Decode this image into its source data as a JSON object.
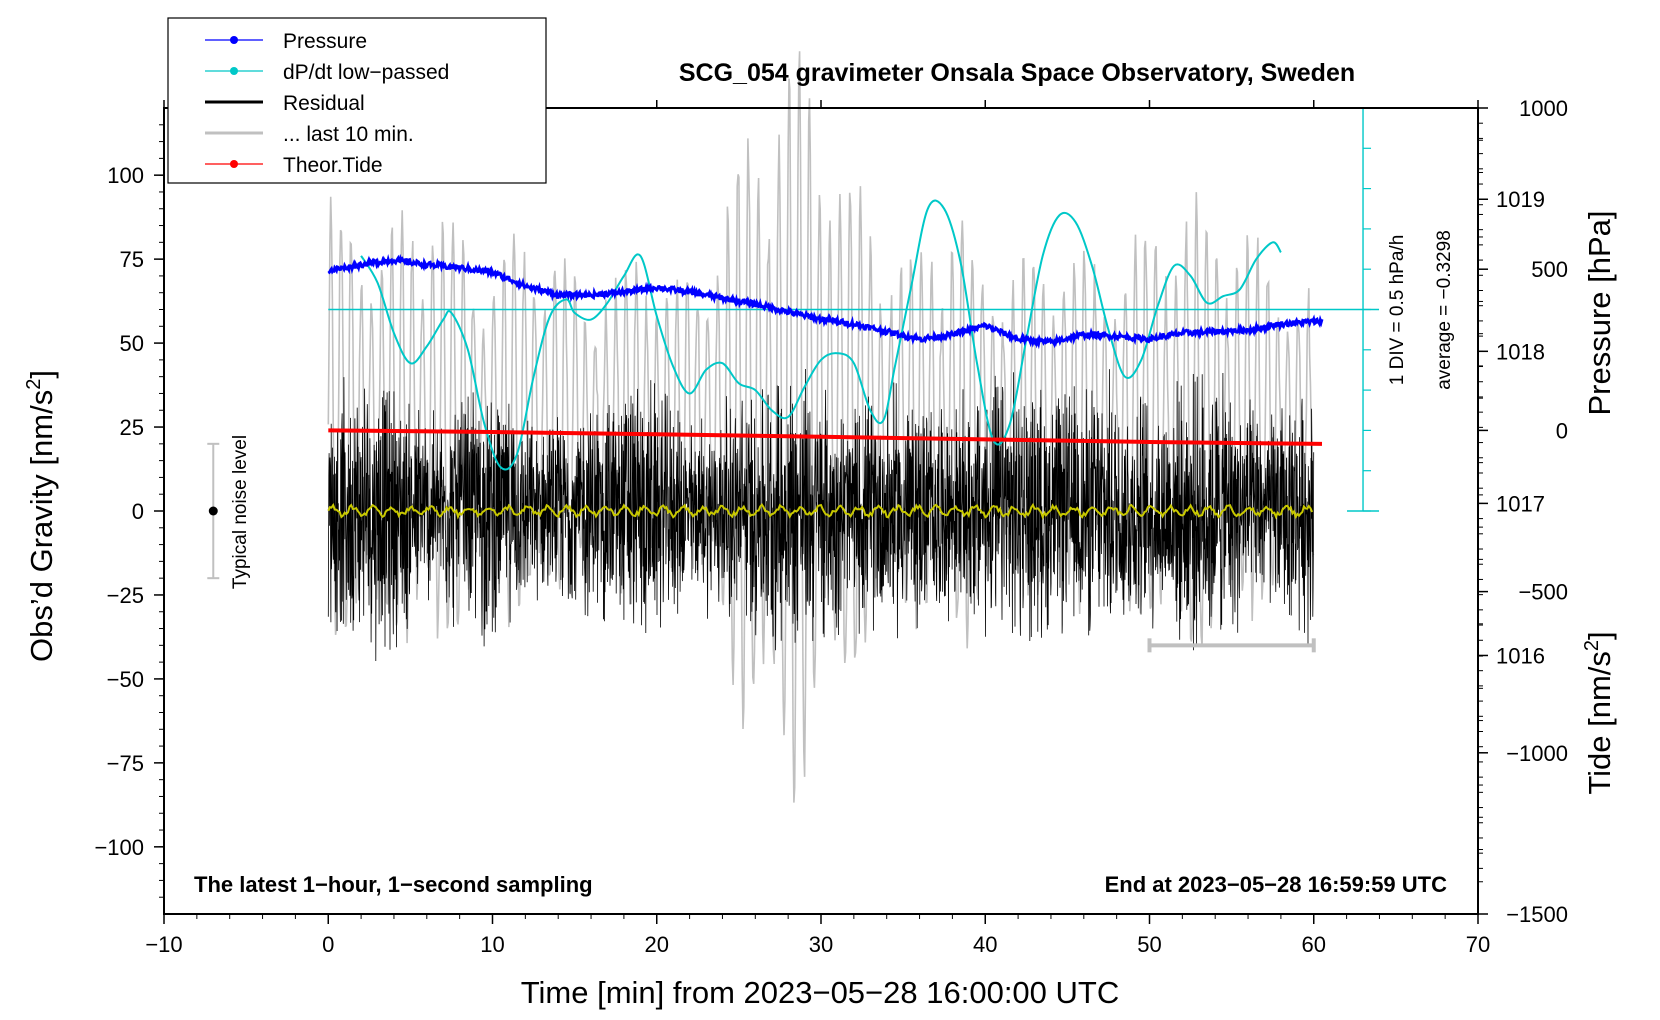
{
  "chart_data": {
    "type": "line",
    "title": "SCG_054 gravimeter Onsala Space Observatory, Sweden",
    "xlabel": "Time [min] from 2023−05−28 16:00:00 UTC",
    "ylabel_left_main": "Obs’d Gravity [nm/s",
    "ylabel_left_sup": "2",
    "ylabel_left_close": "]",
    "ylabel_right_top": "Pressure [hPa]",
    "ylabel_right_bottom_main": "Tide [nm/s",
    "ylabel_right_bottom_sup": "2",
    "ylabel_right_bottom_close": "]",
    "xlim": [
      -10,
      70
    ],
    "ylim": [
      -120,
      120
    ],
    "pressure_ylim": [
      1014.3,
      1019.6
    ],
    "tide_ylim": [
      -1500,
      1000
    ],
    "x_ticks": [
      "−10",
      "0",
      "10",
      "20",
      "30",
      "40",
      "50",
      "60",
      "70"
    ],
    "x_tick_values": [
      -10,
      0,
      10,
      20,
      30,
      40,
      50,
      60,
      70
    ],
    "y_ticks": [
      "100",
      "75",
      "50",
      "25",
      "0",
      "−25",
      "−50",
      "−75",
      "−100"
    ],
    "y_tick_values": [
      100,
      75,
      50,
      25,
      0,
      -25,
      -50,
      -75,
      -100
    ],
    "pressure_ticks": [
      "1019",
      "1018",
      "1017",
      "1016"
    ],
    "pressure_tick_values": [
      1019,
      1018,
      1017,
      1016
    ],
    "tide_ticks": [
      "1000",
      "500",
      "0",
      "−500",
      "−1000",
      "−1500"
    ],
    "tide_tick_values": [
      1000,
      500,
      0,
      -500,
      -1000,
      -1500
    ],
    "legend": [
      {
        "label": "Pressure",
        "color": "#0000ff",
        "marker": true
      },
      {
        "label": "dP/dt low−passed",
        "color": "#00c8c8",
        "marker": true
      },
      {
        "label": "Residual",
        "color": "#000000",
        "marker": false
      },
      {
        "label": "... last 10 min.",
        "color": "#c0c0c0",
        "marker": false
      },
      {
        "label": "Theor.Tide",
        "color": "#ff0000",
        "marker": true
      }
    ],
    "annotation_left": "The latest 1−hour, 1−second sampling",
    "annotation_right": "End at 2023−05−28 16:59:59 UTC",
    "noise_label": "Typical noise level",
    "noise_range": [
      -20,
      20
    ],
    "noise_x": -7,
    "dpdt_scale_label": "1 DIV = 0.5 hPa/h",
    "dpdt_average_label": "average = −0.3298",
    "dpdt_reference_y": 60,
    "dpdt_scale_x": 63,
    "dpdt_scale_range": [
      0,
      120
    ],
    "last10_bar": {
      "x_start": 50,
      "x_end": 60,
      "y": -40
    },
    "series": [
      {
        "name": "Pressure",
        "color": "#0000ff",
        "axis": "pressure",
        "x": [
          0,
          2,
          4,
          6,
          8,
          10,
          12,
          14,
          16,
          18,
          20,
          22,
          24,
          26,
          28,
          30,
          32,
          34,
          36,
          38,
          40,
          42,
          44,
          46,
          48,
          50,
          52,
          54,
          56,
          58,
          60.5
        ],
        "y": [
          1018.53,
          1018.57,
          1018.6,
          1018.57,
          1018.55,
          1018.52,
          1018.43,
          1018.37,
          1018.37,
          1018.39,
          1018.42,
          1018.39,
          1018.35,
          1018.31,
          1018.26,
          1018.21,
          1018.18,
          1018.13,
          1018.08,
          1018.11,
          1018.17,
          1018.08,
          1018.06,
          1018.11,
          1018.1,
          1018.08,
          1018.12,
          1018.13,
          1018.14,
          1018.18,
          1018.2
        ]
      },
      {
        "name": "dP/dt low−passed",
        "color": "#00c8c8",
        "axis": "left",
        "x": [
          2,
          3,
          4,
          5,
          6,
          7,
          7.5,
          8.5,
          9.5,
          10.5,
          11.5,
          12.5,
          13.5,
          14.5,
          15,
          16,
          17,
          18,
          19,
          20,
          21,
          22,
          23,
          24,
          25,
          26,
          27,
          28,
          29,
          30,
          31,
          32,
          33,
          33.8,
          34.5,
          35.5,
          36.5,
          37.5,
          38.5,
          39.5,
          40.5,
          41.5,
          42.5,
          43.5,
          44.5,
          45.5,
          46.5,
          47.5,
          48.5,
          49.5,
          50.5,
          51.5,
          52.5,
          53.5,
          54.5,
          55.5,
          56.5,
          57.5,
          58
        ],
        "y": [
          76,
          68,
          53,
          44,
          49,
          57,
          59,
          48,
          26,
          13,
          17,
          40,
          58,
          63,
          59,
          57,
          62,
          70,
          76,
          58,
          43,
          35,
          42,
          44,
          38,
          36,
          30,
          28,
          37,
          45,
          47,
          44,
          30,
          27,
          43,
          67,
          90,
          90,
          74,
          44,
          21,
          26,
          51,
          76,
          88,
          86,
          73,
          54,
          40,
          45,
          61,
          73,
          70,
          62,
          64,
          66,
          75,
          80,
          77
        ]
      },
      {
        "name": "Residual",
        "color": "#000000",
        "axis": "left",
        "x": [
          0,
          60
        ],
        "amplitude_envelope": [
          38,
          48,
          32,
          44,
          28,
          36,
          46,
          30,
          40,
          50,
          36,
          42,
          34,
          46,
          40,
          44,
          38,
          48,
          32,
          42
        ]
      },
      {
        "name": "Residual smoothed",
        "color": "#c8c800",
        "axis": "left",
        "x": [
          0,
          60
        ],
        "y_mean": 0
      },
      {
        "name": "... last 10 min.",
        "color": "#c0c0c0",
        "axis": "tide",
        "x": [
          0,
          60
        ],
        "amplitude_envelope": [
          700,
          600,
          750,
          500,
          650,
          400,
          550,
          450,
          900,
          1200,
          800,
          500,
          700,
          450,
          600,
          500,
          650,
          700,
          550,
          400
        ]
      },
      {
        "name": "Theor.Tide",
        "color": "#ff0000",
        "axis": "tide",
        "x": [
          0,
          10,
          20,
          30,
          40,
          50,
          60.5
        ],
        "y": [
          0,
          -5,
          -12,
          -20,
          -28,
          -36,
          -42
        ]
      }
    ]
  }
}
